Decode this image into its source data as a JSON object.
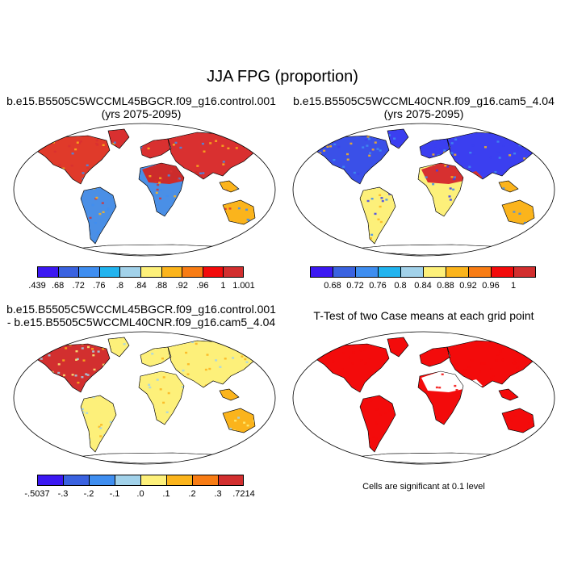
{
  "title": "JJA FPG (proportion)",
  "panels": {
    "top_left": {
      "title_line1": "b.e15.B5505C5WCCML45BGCR.f09_g16.control.001",
      "title_line2": "(yrs 2075-2095)"
    },
    "top_right": {
      "title_line1": "b.e15.B5505C5WCCML40CNR.f09_g16.cam5_4.04",
      "title_line2": "(yrs 2075-2095)"
    },
    "bottom_left": {
      "title_line1": "b.e15.B5505C5WCCML45BGCR.f09_g16.control.001",
      "title_line2": "- b.e15.B5505C5WCCML40CNR.f09_g16.cam5_4.04"
    },
    "bottom_right": {
      "title_line1": "T-Test of two Case means at each grid point",
      "note": "Cells are significant at 0.1 level"
    }
  },
  "colorbars": {
    "top_left": {
      "colors": [
        "#3b18f2",
        "#3a62e0",
        "#3f8ef0",
        "#22b4ef",
        "#a2d2ea",
        "#fdf07a",
        "#fbb41c",
        "#f87c14",
        "#f30b0b",
        "#d22f2f"
      ],
      "labels": [
        ".439",
        ".68",
        ".72",
        ".76",
        ".8",
        ".84",
        ".88",
        ".92",
        ".96",
        "1",
        "1.001"
      ]
    },
    "top_right": {
      "colors": [
        "#3b18f2",
        "#3a62e0",
        "#3f8ef0",
        "#22b4ef",
        "#a2d2ea",
        "#fdf07a",
        "#fbb41c",
        "#f87c14",
        "#f30b0b",
        "#d22f2f"
      ],
      "labels": [
        "0.68",
        "0.72",
        "0.76",
        "0.8",
        "0.84",
        "0.88",
        "0.92",
        "0.96",
        "1"
      ]
    },
    "bottom_left": {
      "colors": [
        "#3b18f2",
        "#3a62e0",
        "#3f8ef0",
        "#a2d2ea",
        "#fdf07a",
        "#fbb41c",
        "#f87c14",
        "#d22f2f"
      ],
      "labels": [
        "-.5037",
        "-.3",
        "-.2",
        "-.1",
        ".0",
        ".1",
        ".2",
        ".3",
        ".7214"
      ]
    }
  },
  "map_colors": {
    "border": "#000000",
    "land_fill": "#ffffff"
  },
  "map_layers": {
    "top_left": {
      "default": "#d93030",
      "americas_north": "#e03a2a",
      "lowlat": "#4a8fe6",
      "sahara": "#cc2b2b",
      "accent1": "#fbb41c",
      "accent2": "#3f8ef0"
    },
    "top_right": {
      "default": "#3b3ff0",
      "americas_north": "#3a50e8",
      "lowlat": "#fdf07a",
      "sahara": "#d73030",
      "accent1": "#fbb41c",
      "accent2": "#3f8ef0"
    },
    "bottom_left": {
      "default": "#fdf07a",
      "americas_north": "#d22f2f",
      "lowlat": "#fdf07a",
      "sahara": "#fdf07a",
      "accent1": "#fbb41c",
      "accent2": "#a2d2ea"
    },
    "bottom_right": {
      "default": "#f30b0b",
      "americas_north": "#f30b0b",
      "lowlat": "#f30b0b",
      "sahara": "#ffffff",
      "accent1": "#f30b0b",
      "accent2": "#f30b0b"
    }
  }
}
